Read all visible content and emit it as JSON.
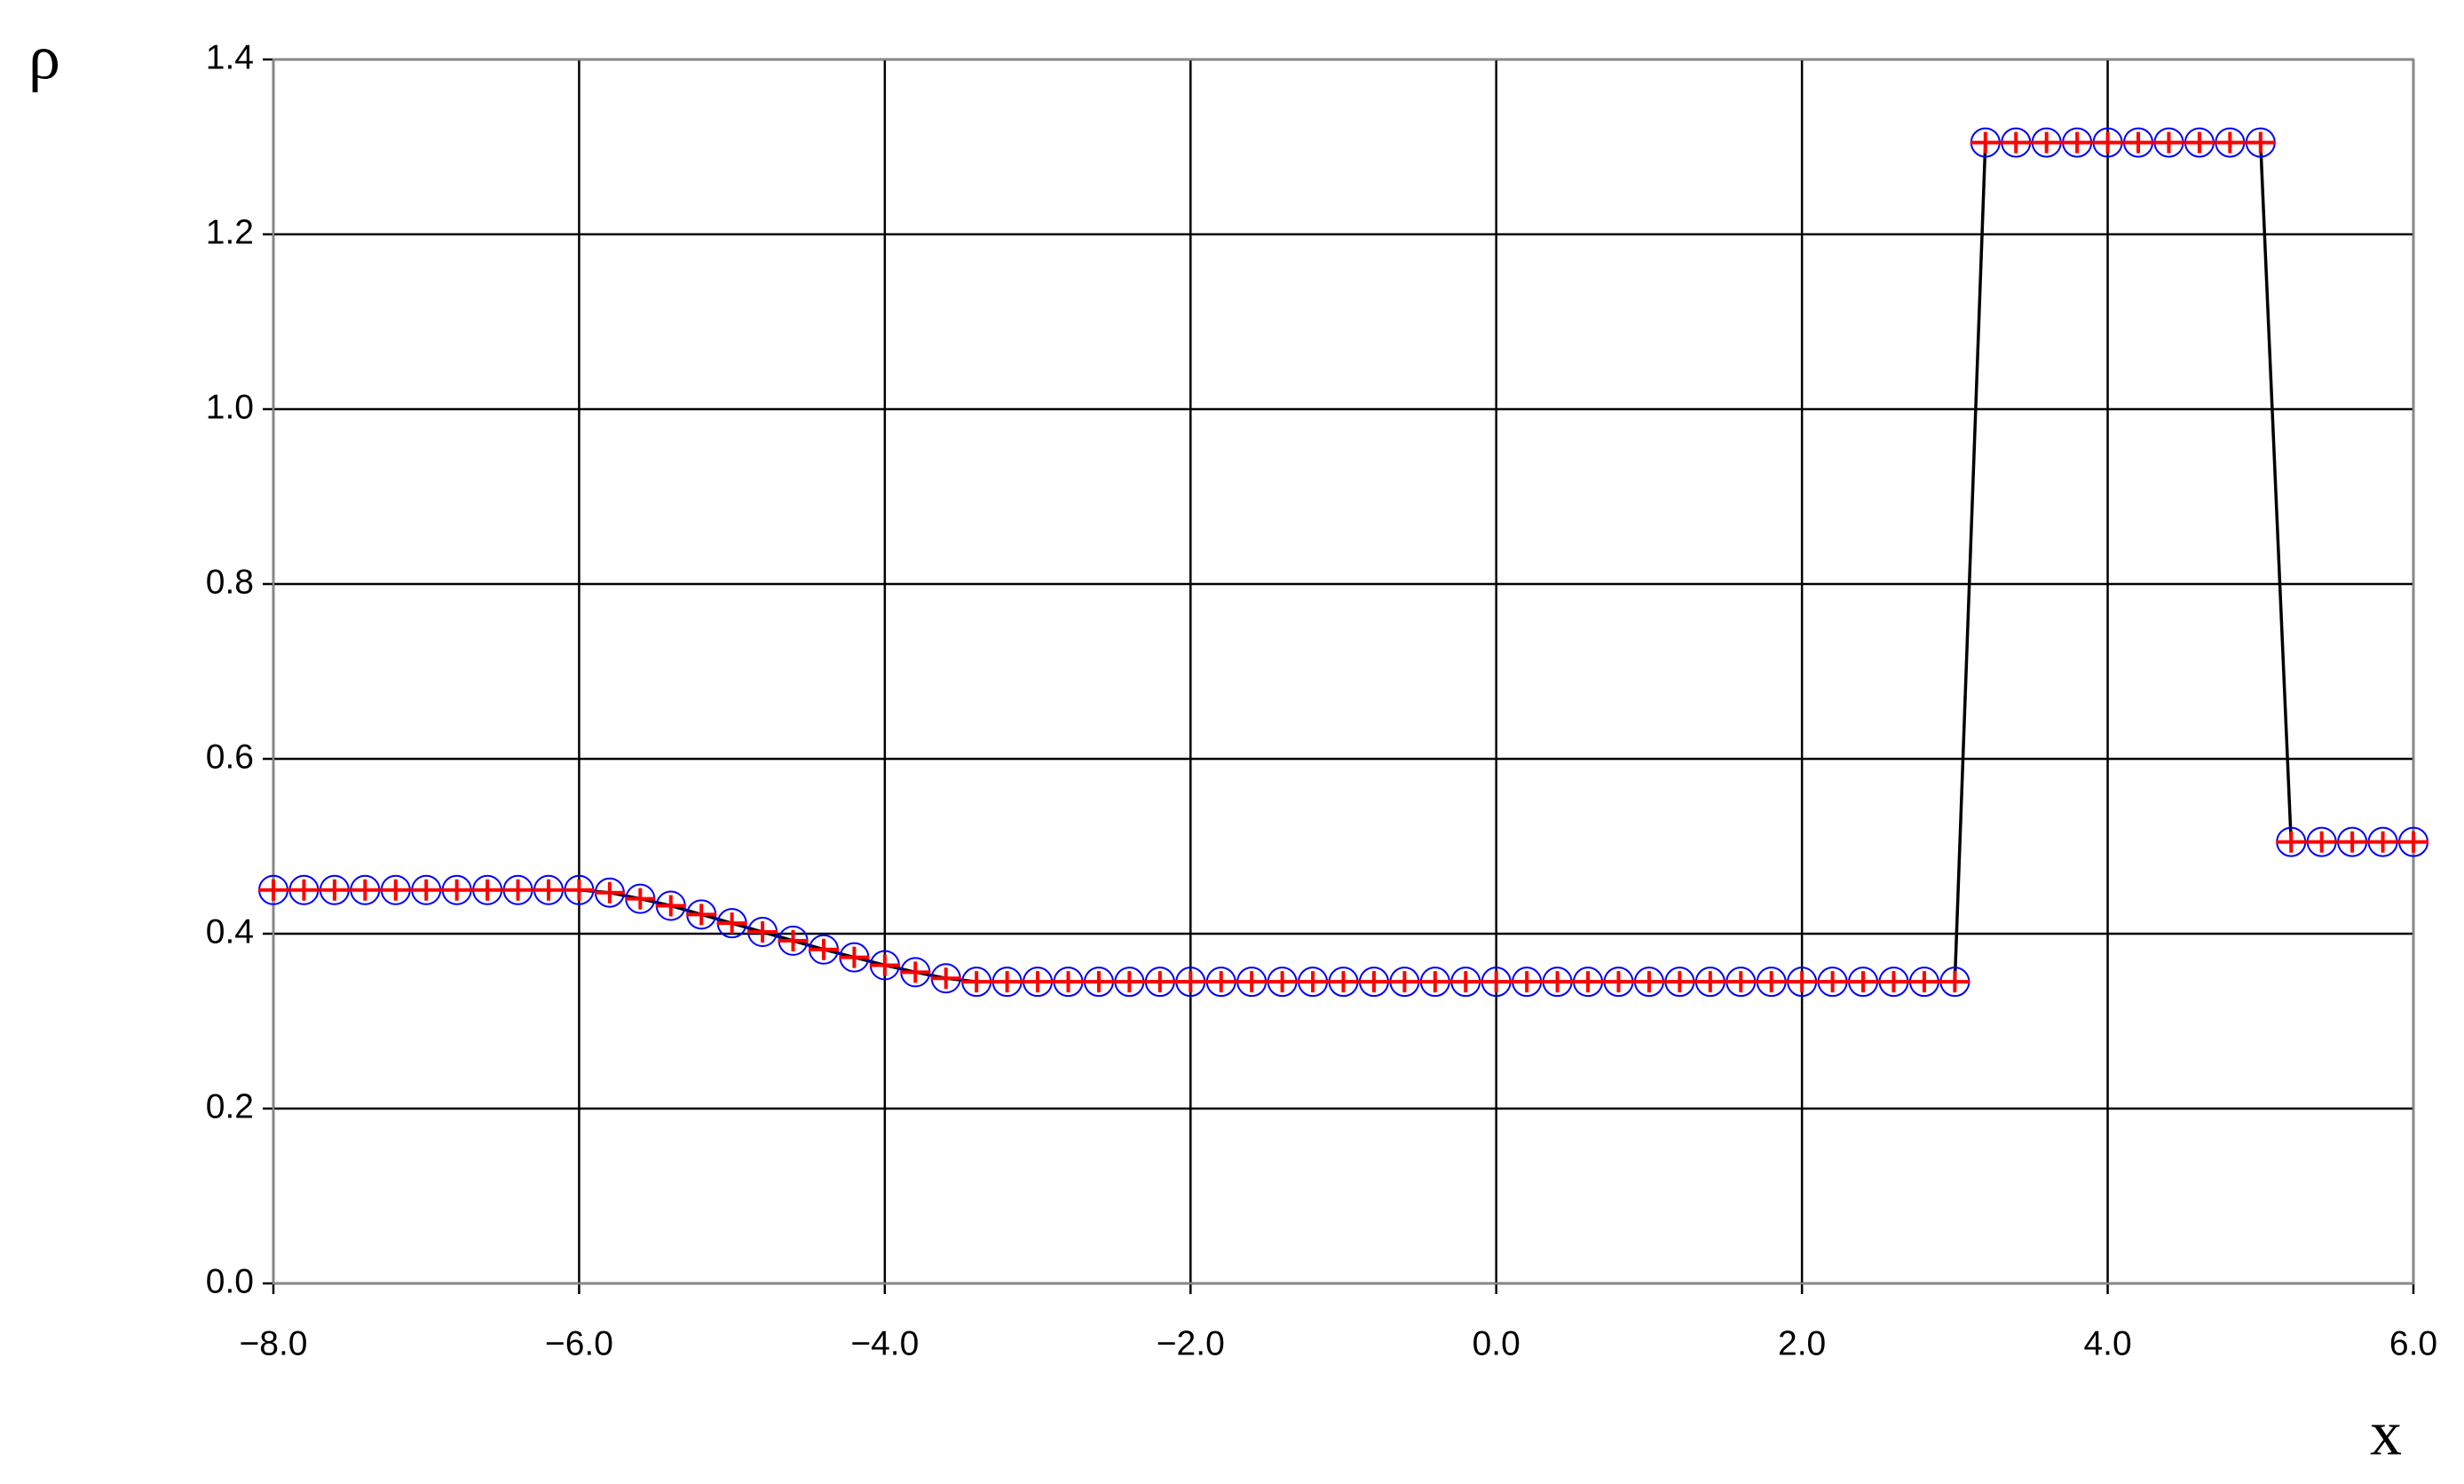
{
  "chart_data": {
    "type": "line",
    "ylabel": "ρ",
    "xlabel": "x",
    "x": [
      -8.0,
      -7.8,
      -7.6,
      -7.4,
      -7.2,
      -7.0,
      -6.8,
      -6.6,
      -6.4,
      -6.2,
      -6.0,
      -5.8,
      -5.6,
      -5.4,
      -5.2,
      -5.0,
      -4.8,
      -4.6,
      -4.4,
      -4.2,
      -4.0,
      -3.8,
      -3.6,
      -3.4,
      -3.2,
      -3.0,
      -2.8,
      -2.6,
      -2.4,
      -2.2,
      -2.0,
      -1.8,
      -1.6,
      -1.4,
      -1.2,
      -1.0,
      -0.8,
      -0.6,
      -0.4,
      -0.2,
      0.0,
      0.2,
      0.4,
      0.6,
      0.8,
      1.0,
      1.2,
      1.4,
      1.6,
      1.8,
      2.0,
      2.2,
      2.4,
      2.6,
      2.8,
      3.0,
      3.2,
      3.4,
      3.6,
      3.8,
      4.0,
      4.2,
      4.4,
      4.6,
      4.8,
      5.0,
      5.2,
      5.4,
      5.6,
      5.8,
      6.0
    ],
    "series": [
      {
        "color": "#000000",
        "marker": "none",
        "line": true,
        "values": [
          0.45,
          0.45,
          0.45,
          0.45,
          0.45,
          0.45,
          0.45,
          0.45,
          0.45,
          0.45,
          0.45,
          0.447,
          0.44,
          0.432,
          0.422,
          0.412,
          0.402,
          0.392,
          0.382,
          0.373,
          0.364,
          0.356,
          0.349,
          0.345,
          0.345,
          0.345,
          0.345,
          0.345,
          0.345,
          0.345,
          0.345,
          0.345,
          0.345,
          0.345,
          0.345,
          0.345,
          0.345,
          0.345,
          0.345,
          0.345,
          0.345,
          0.345,
          0.345,
          0.345,
          0.345,
          0.345,
          0.345,
          0.345,
          0.345,
          0.345,
          0.345,
          0.345,
          0.345,
          0.345,
          0.345,
          0.345,
          1.305,
          1.305,
          1.305,
          1.305,
          1.305,
          1.305,
          1.305,
          1.305,
          1.305,
          1.305,
          0.505,
          0.505,
          0.505,
          0.505,
          0.505
        ]
      },
      {
        "color": "#0000ff",
        "marker": "circle",
        "line": false,
        "values": [
          0.45,
          0.45,
          0.45,
          0.45,
          0.45,
          0.45,
          0.45,
          0.45,
          0.45,
          0.45,
          0.45,
          0.447,
          0.44,
          0.432,
          0.422,
          0.412,
          0.402,
          0.392,
          0.382,
          0.373,
          0.364,
          0.356,
          0.349,
          0.345,
          0.345,
          0.345,
          0.345,
          0.345,
          0.345,
          0.345,
          0.345,
          0.345,
          0.345,
          0.345,
          0.345,
          0.345,
          0.345,
          0.345,
          0.345,
          0.345,
          0.345,
          0.345,
          0.345,
          0.345,
          0.345,
          0.345,
          0.345,
          0.345,
          0.345,
          0.345,
          0.345,
          0.345,
          0.345,
          0.345,
          0.345,
          0.345,
          1.305,
          1.305,
          1.305,
          1.305,
          1.305,
          1.305,
          1.305,
          1.305,
          1.305,
          1.305,
          0.505,
          0.505,
          0.505,
          0.505,
          0.505
        ]
      },
      {
        "color": "#ff0000",
        "marker": "plus",
        "line": false,
        "values": [
          0.45,
          0.45,
          0.45,
          0.45,
          0.45,
          0.45,
          0.45,
          0.45,
          0.45,
          0.45,
          0.45,
          0.447,
          0.44,
          0.432,
          0.422,
          0.412,
          0.402,
          0.392,
          0.382,
          0.373,
          0.364,
          0.356,
          0.349,
          0.345,
          0.345,
          0.345,
          0.345,
          0.345,
          0.345,
          0.345,
          0.345,
          0.345,
          0.345,
          0.345,
          0.345,
          0.345,
          0.345,
          0.345,
          0.345,
          0.345,
          0.345,
          0.345,
          0.345,
          0.345,
          0.345,
          0.345,
          0.345,
          0.345,
          0.345,
          0.345,
          0.345,
          0.345,
          0.345,
          0.345,
          0.345,
          0.345,
          1.305,
          1.305,
          1.305,
          1.305,
          1.305,
          1.305,
          1.305,
          1.305,
          1.305,
          1.305,
          0.505,
          0.505,
          0.505,
          0.505,
          0.505
        ]
      }
    ],
    "xlim": [
      -8.0,
      6.0
    ],
    "xticks": [
      {
        "value": -8,
        "label": "−8.0"
      },
      {
        "value": -6,
        "label": "−6.0"
      },
      {
        "value": -4,
        "label": "−4.0"
      },
      {
        "value": -2,
        "label": "−2.0"
      },
      {
        "value": 0,
        "label": "0.0"
      },
      {
        "value": 2,
        "label": "2.0"
      },
      {
        "value": 4,
        "label": "4.0"
      },
      {
        "value": 6,
        "label": "6.0"
      }
    ],
    "ylim": [
      0.0,
      1.4
    ],
    "yticks": [
      {
        "value": 0,
        "label": "0.0"
      },
      0.2,
      0.4,
      0.6,
      0.8,
      {
        "value": 1,
        "label": "1.0"
      },
      1.2,
      1.4
    ],
    "grid": true
  }
}
